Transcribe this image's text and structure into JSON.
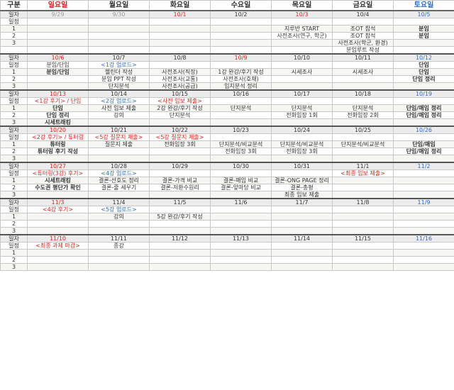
{
  "header": [
    "구분",
    "일요일",
    "월요일",
    "화요일",
    "수요일",
    "목요일",
    "금요일",
    "토요일"
  ],
  "labels": {
    "date": "일자",
    "schedule": "일정",
    "r1": "1",
    "r2": "2",
    "r3": "3"
  },
  "weeks": [
    {
      "dates": [
        "9/29",
        "9/30",
        "10/1",
        "10/2",
        "10/3",
        "10/4",
        "10/5"
      ],
      "schedule": [
        "",
        "",
        "",
        "",
        "",
        "",
        ""
      ],
      "r1": [
        "",
        "",
        "",
        "",
        "지루반 START",
        "조OT 참석",
        "분임"
      ],
      "r2": [
        "",
        "",
        "",
        "",
        "사전조사(연구, 학군)",
        "조OT 참석",
        "분임"
      ],
      "r3": [
        "",
        "",
        "",
        "",
        "",
        "사전조사(학군, 환경)",
        ""
      ],
      "r4": [
        "",
        "",
        "",
        "",
        "",
        "분임루트 작성",
        ""
      ]
    },
    {
      "dates": [
        "10/6",
        "10/7",
        "10/8",
        "10/9",
        "10/10",
        "10/11",
        "10/12"
      ],
      "schedule": [
        "분임/단임",
        "<1강 업로드>",
        "",
        "",
        "",
        "",
        "단임"
      ],
      "r1": [
        "분임/단임",
        "헬린더 작성",
        "사전조사(직장)",
        "1강 완강/후기 작성",
        "시세조사",
        "시세조사",
        "단임"
      ],
      "r2": [
        "",
        "분임 PPT 작성",
        "사전조사(교통)",
        "사전조사(호재)",
        "",
        "",
        "단임 정리"
      ],
      "r3": [
        "",
        "단지분석",
        "사전조사(공급)",
        "입지분석 정리",
        "",
        "",
        ""
      ]
    },
    {
      "dates": [
        "10/13",
        "10/14",
        "10/15",
        "10/16",
        "10/17",
        "10/18",
        "10/19"
      ],
      "schedule": [
        "<1강 후기> / 단임",
        "<2강 업로드>",
        "<사전 임보 제출>",
        "",
        "",
        "",
        ""
      ],
      "r1": [
        "단임",
        "사전 임보 제출",
        "2강 완강/후기 작성",
        "단지분석",
        "단지분석",
        "단지분석",
        "단임/매임 정리"
      ],
      "r2": [
        "단임 정리",
        "강의",
        "단지분석",
        "",
        "전화임장 1회",
        "전화임장 2회",
        "단임/매임 정리"
      ],
      "r3": [
        "시세트래킹",
        "",
        "",
        "",
        "",
        "",
        ""
      ]
    },
    {
      "dates": [
        "10/20",
        "10/21",
        "10/22",
        "10/23",
        "10/24",
        "10/25",
        "10/26"
      ],
      "schedule": [
        "<2강 후기> / 튜터링",
        "<5강 질문지 제출>",
        "<5강 질문지 제출>",
        "",
        "",
        "",
        ""
      ],
      "r1": [
        "튜터링",
        "질문지 제출",
        "전화임장 3회",
        "단지분석/비교분석",
        "단지분석/비교분석",
        "단지분석/비교분석",
        "단임/매임"
      ],
      "r2": [
        "튜터링 후기 작성",
        "",
        "",
        "전화임장 3회",
        "전화임장 3회",
        "",
        "단임/매임 정리"
      ],
      "r3": [
        "",
        "",
        "",
        "",
        "",
        "",
        ""
      ]
    },
    {
      "dates": [
        "10/27",
        "10/28",
        "10/29",
        "10/30",
        "10/31",
        "11/1",
        "11/2"
      ],
      "schedule": [
        "<튜터링(3강) 후기>",
        "<4강 업로드>",
        "",
        "",
        "",
        "<최종 임보 제출>",
        ""
      ],
      "r1": [
        "시세트래킹",
        "결론-선호도 정리",
        "결론-가격 비교",
        "결론-매임 비교",
        "결론-ONG PAGE 정리",
        "",
        ""
      ],
      "r2": [
        "수도권 평단가 확인",
        "결론-줄 세우기",
        "결론-저환수원리",
        "결론-앞마당 비교",
        "결론-총평",
        "",
        ""
      ],
      "r3": [
        "",
        "",
        "",
        "",
        "최종 임보 제출",
        "",
        ""
      ]
    },
    {
      "dates": [
        "11/3",
        "11/4",
        "11/5",
        "11/6",
        "11/7",
        "11/8",
        "11/9"
      ],
      "schedule": [
        "<4강 후기>",
        "<5강 업로드>",
        "",
        "",
        "",
        "",
        ""
      ],
      "r1": [
        "",
        "강의",
        "5강 완강/후기 작성",
        "",
        "",
        "",
        ""
      ],
      "r2": [
        "",
        "",
        "",
        "",
        "",
        "",
        ""
      ],
      "r3": [
        "",
        "",
        "",
        "",
        "",
        "",
        ""
      ]
    },
    {
      "dates": [
        "11/10",
        "11/11",
        "11/12",
        "11/13",
        "11/14",
        "11/15",
        "11/16"
      ],
      "schedule": [
        "<최종 과제 마감>",
        "종강",
        "",
        "",
        "",
        "",
        ""
      ],
      "r1": [
        "",
        "",
        "",
        "",
        "",
        "",
        ""
      ],
      "r2": [
        "",
        "",
        "",
        "",
        "",
        "",
        ""
      ],
      "r3": [
        "",
        "",
        "",
        "",
        "",
        "",
        ""
      ]
    }
  ]
}
